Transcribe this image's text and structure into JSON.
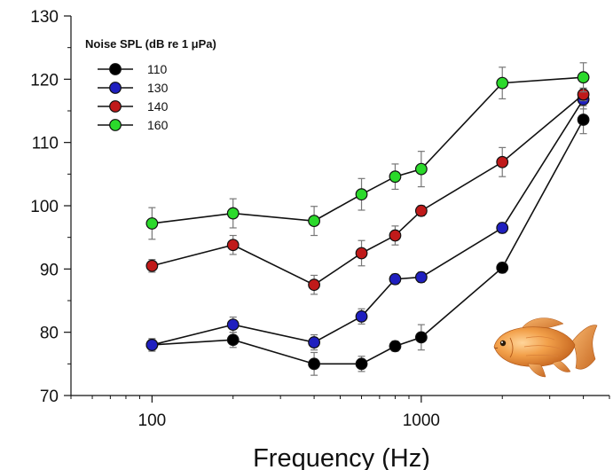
{
  "chart_data": {
    "type": "line",
    "title": "",
    "xlabel": "Frequency (Hz)",
    "ylabel": "",
    "xscale": "log",
    "xlim": [
      50,
      5000
    ],
    "ylim": [
      70,
      130
    ],
    "x_ticks": [
      100,
      1000
    ],
    "x_tick_labels": [
      "100",
      "1000"
    ],
    "y_ticks": [
      70,
      80,
      90,
      100,
      110,
      120,
      130
    ],
    "y_tick_labels": [
      "70",
      "80",
      "90",
      "100",
      "110",
      "120",
      "130"
    ],
    "grid": false,
    "legend_title": "Noise SPL (dB re 1 μPa)",
    "legend_position": "top-left",
    "error_bars": true,
    "series": [
      {
        "name": "110",
        "color": "#000000",
        "x": [
          100,
          200,
          400,
          600,
          800,
          1000,
          2000,
          4000
        ],
        "y": [
          78.0,
          78.8,
          75.0,
          75.0,
          77.8,
          79.2,
          90.2,
          113.6
        ],
        "err": [
          1.0,
          1.2,
          1.8,
          1.2,
          0.8,
          2.0,
          0.8,
          2.2
        ]
      },
      {
        "name": "130",
        "color": "#1f1fbf",
        "x": [
          100,
          200,
          400,
          600,
          800,
          1000,
          2000,
          4000
        ],
        "y": [
          78.0,
          81.2,
          78.4,
          82.5,
          88.4,
          88.7,
          96.5,
          116.8
        ],
        "err": [
          0.8,
          1.2,
          1.2,
          1.2,
          0.8,
          0.8,
          0.8,
          1.5
        ]
      },
      {
        "name": "140",
        "color": "#c01a1a",
        "x": [
          100,
          200,
          400,
          600,
          800,
          1000,
          2000,
          4000
        ],
        "y": [
          90.5,
          93.8,
          87.5,
          92.5,
          95.3,
          99.2,
          106.9,
          117.6
        ],
        "err": [
          1.0,
          1.5,
          1.5,
          2.0,
          1.5,
          0.8,
          2.3,
          1.0
        ]
      },
      {
        "name": "160",
        "color": "#2bd92b",
        "x": [
          100,
          200,
          400,
          600,
          800,
          1000,
          2000,
          4000
        ],
        "y": [
          97.2,
          98.8,
          97.6,
          101.8,
          104.6,
          105.8,
          119.4,
          120.3
        ],
        "err": [
          2.5,
          2.3,
          2.3,
          2.5,
          2.0,
          2.8,
          2.5,
          2.3
        ]
      }
    ],
    "image_decoration": "goldfish-illustration"
  }
}
